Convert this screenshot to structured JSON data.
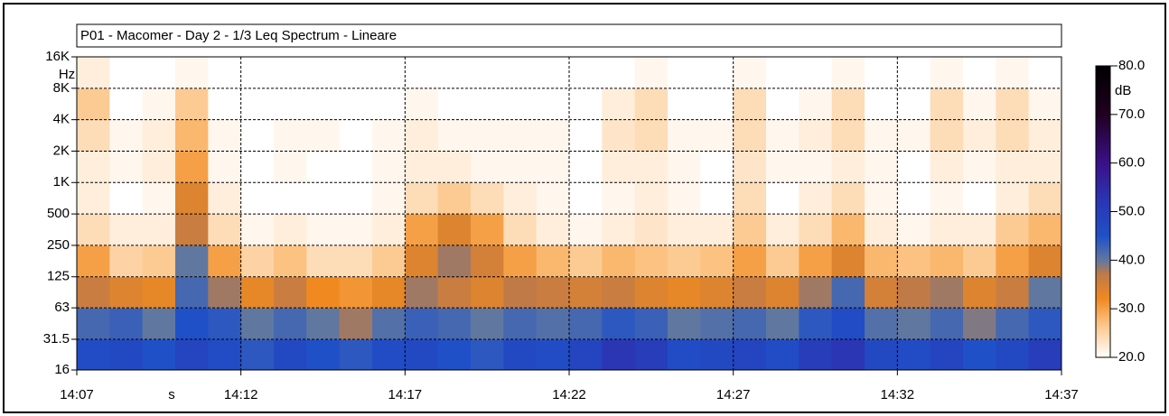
{
  "chart_data": {
    "type": "spectrogram",
    "title": "P01 - Macomer - Day 2 - 1/3 Leq Spectrum - Lineare",
    "y_unit": "Hz",
    "x_unit": "s",
    "colorbar_unit": "dB",
    "xlim": [
      "14:07",
      "14:37"
    ],
    "xticks": [
      "14:07",
      "14:12",
      "14:17",
      "14:22",
      "14:27",
      "14:32",
      "14:37"
    ],
    "ylim": [
      16,
      16000
    ],
    "log_y": true,
    "yticks": [
      16,
      31.5,
      63,
      125,
      250,
      500,
      {
        "value": 1000,
        "label": "1K"
      },
      {
        "value": 2000,
        "label": "2K"
      },
      {
        "value": 4000,
        "label": "4K"
      },
      {
        "value": 8000,
        "label": "8K"
      },
      {
        "value": 16000,
        "label": "16K"
      }
    ],
    "grid": true,
    "zlim": [
      20,
      80
    ],
    "zticks": [
      {
        "value": 20,
        "label": "20.0"
      },
      {
        "value": 30,
        "label": "30.0"
      },
      {
        "value": 40,
        "label": "40.0"
      },
      {
        "value": 50,
        "label": "50.0"
      },
      {
        "value": 60,
        "label": "60.0"
      },
      {
        "value": 70,
        "label": "70.0"
      },
      {
        "value": 80,
        "label": "80.0"
      }
    ],
    "colorscale": [
      [
        20,
        "#ffffff"
      ],
      [
        27,
        "#fcc282"
      ],
      [
        32,
        "#f08a20"
      ],
      [
        37,
        "#c07a48"
      ],
      [
        40,
        "#6078a0"
      ],
      [
        45,
        "#2050c8"
      ],
      [
        52,
        "#2a36b4"
      ],
      [
        60,
        "#3a1088"
      ],
      [
        70,
        "#200020"
      ],
      [
        80,
        "#000000"
      ]
    ],
    "z": [
      [
        46,
        47,
        45,
        48,
        46,
        44,
        47,
        45,
        44,
        46,
        47,
        45,
        44,
        47,
        46,
        48,
        52,
        50,
        46,
        47,
        48,
        46,
        50,
        52,
        47,
        46,
        48,
        45,
        47,
        50
      ],
      [
        42,
        43,
        40,
        45,
        44,
        40,
        42,
        40,
        38,
        41,
        43,
        42,
        40,
        42,
        41,
        42,
        44,
        43,
        40,
        41,
        42,
        40,
        44,
        46,
        41,
        40,
        42,
        39,
        42,
        44
      ],
      [
        36,
        34,
        33,
        42,
        38,
        33,
        36,
        32,
        31,
        33,
        38,
        36,
        34,
        37,
        36,
        35,
        36,
        34,
        33,
        34,
        36,
        34,
        38,
        42,
        35,
        37,
        38,
        34,
        36,
        40
      ],
      [
        30,
        25,
        26,
        40,
        30,
        25,
        27,
        24,
        24,
        26,
        34,
        38,
        35,
        30,
        28,
        26,
        28,
        27,
        26,
        27,
        30,
        26,
        30,
        34,
        28,
        27,
        28,
        26,
        30,
        34
      ],
      [
        24,
        22,
        22,
        36,
        24,
        21,
        22,
        21,
        21,
        22,
        30,
        34,
        30,
        24,
        22,
        21,
        22,
        23,
        22,
        22,
        26,
        22,
        24,
        28,
        22,
        21,
        22,
        22,
        26,
        28
      ],
      [
        22,
        20,
        21,
        34,
        22,
        20,
        20,
        20,
        20,
        21,
        24,
        26,
        24,
        22,
        21,
        20,
        21,
        22,
        21,
        20,
        24,
        20,
        22,
        24,
        21,
        20,
        21,
        20,
        22,
        24
      ],
      [
        22,
        21,
        22,
        30,
        21,
        20,
        21,
        20,
        20,
        21,
        22,
        22,
        21,
        21,
        21,
        20,
        22,
        22,
        21,
        20,
        23,
        21,
        21,
        22,
        21,
        20,
        22,
        21,
        22,
        22
      ],
      [
        24,
        21,
        22,
        28,
        21,
        20,
        21,
        21,
        20,
        21,
        22,
        21,
        21,
        21,
        21,
        20,
        23,
        24,
        21,
        21,
        24,
        21,
        22,
        24,
        21,
        21,
        24,
        22,
        24,
        22
      ],
      [
        26,
        20,
        21,
        26,
        20,
        20,
        20,
        20,
        20,
        20,
        21,
        20,
        20,
        20,
        20,
        20,
        22,
        24,
        20,
        20,
        24,
        20,
        21,
        24,
        20,
        20,
        24,
        21,
        24,
        21
      ],
      [
        22,
        20,
        20,
        21,
        20,
        20,
        20,
        20,
        20,
        20,
        20,
        20,
        20,
        20,
        20,
        20,
        20,
        21,
        20,
        20,
        21,
        20,
        20,
        21,
        20,
        20,
        21,
        20,
        21,
        20
      ]
    ]
  }
}
